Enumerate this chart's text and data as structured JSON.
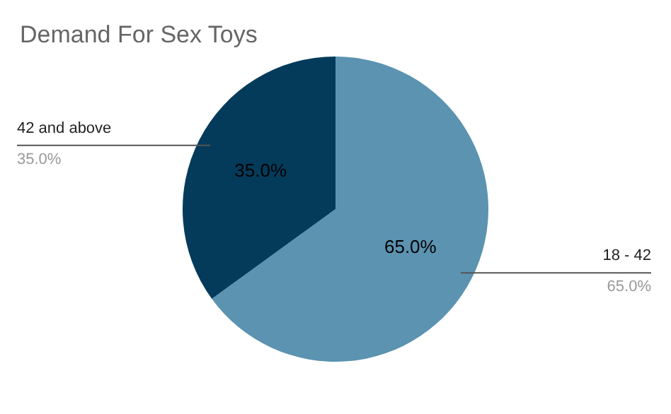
{
  "chart_data": {
    "type": "pie",
    "title": "Demand For Sex Toys",
    "categories": [
      "18 - 42",
      "42 and above"
    ],
    "values": [
      65,
      35
    ],
    "colors": [
      "#5b93b1",
      "#043b5a"
    ],
    "value_labels": [
      "65.0%",
      "35.0%"
    ]
  }
}
